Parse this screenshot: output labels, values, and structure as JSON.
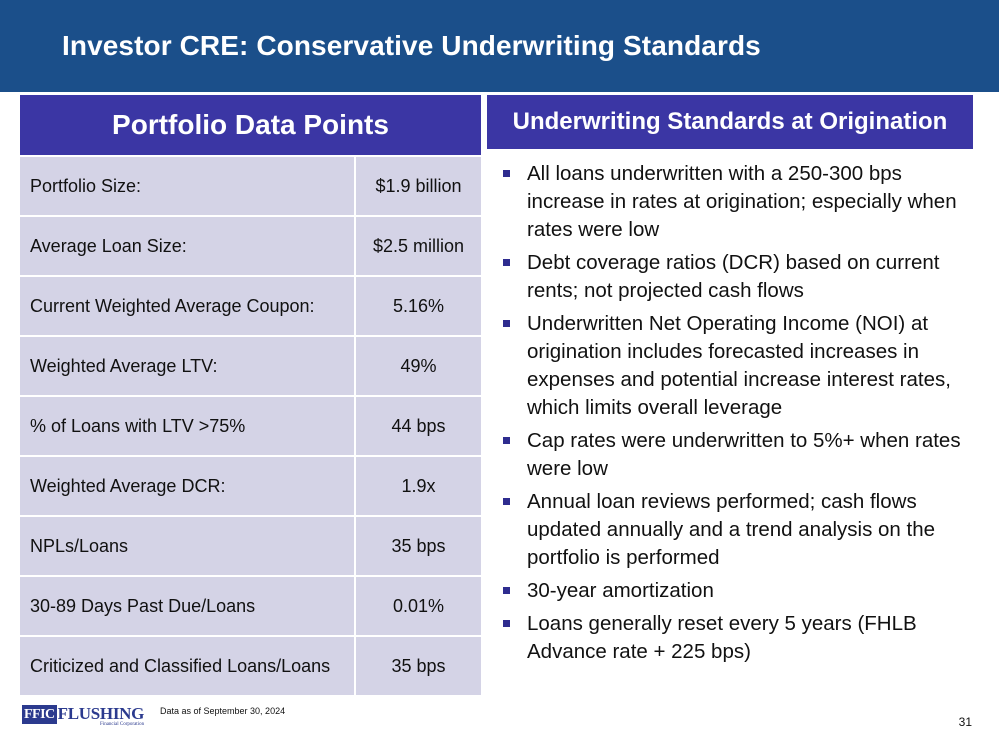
{
  "header": {
    "title": "Investor CRE: Conservative Underwriting Standards"
  },
  "left": {
    "heading": "Portfolio Data Points",
    "rows": [
      {
        "label": "Portfolio Size:",
        "value": "$1.9 billion"
      },
      {
        "label": "Average Loan Size:",
        "value": "$2.5 million"
      },
      {
        "label": "Current Weighted Average Coupon:",
        "value": "5.16%"
      },
      {
        "label": "Weighted Average LTV:",
        "value": "49%"
      },
      {
        "label": "% of Loans with LTV >75%",
        "value": "44 bps"
      },
      {
        "label": "Weighted Average DCR:",
        "value": "1.9x"
      },
      {
        "label": "NPLs/Loans",
        "value": "35 bps"
      },
      {
        "label": "30-89 Days Past Due/Loans",
        "value": "0.01%"
      },
      {
        "label": "Criticized and Classified Loans/Loans",
        "value": "35 bps"
      }
    ]
  },
  "right": {
    "heading": "Underwriting Standards at Origination",
    "bullets": [
      "All loans underwritten with a 250-300 bps increase in rates at origination; especially when rates were low",
      "Debt coverage ratios (DCR) based on current rents; not projected cash flows",
      "Underwritten Net Operating Income (NOI) at origination includes forecasted increases in expenses and potential increase interest rates, which limits overall leverage",
      "Cap rates were underwritten to 5%+ when rates were low",
      "Annual loan reviews performed; cash flows updated annually and a trend analysis on the portfolio is performed",
      "30-year amortization",
      "Loans generally reset every 5 years (FHLB Advance rate + 225 bps)"
    ]
  },
  "footer": {
    "logo_ffic": "FFIC",
    "logo_name": "FLUSHING",
    "logo_sub": "Financial Corporation",
    "note": "Data as of September 30, 2024",
    "page": "31"
  },
  "colors": {
    "header": "#1b4f8a",
    "heading": "#3b36a4",
    "row": "#d4d3e6"
  }
}
